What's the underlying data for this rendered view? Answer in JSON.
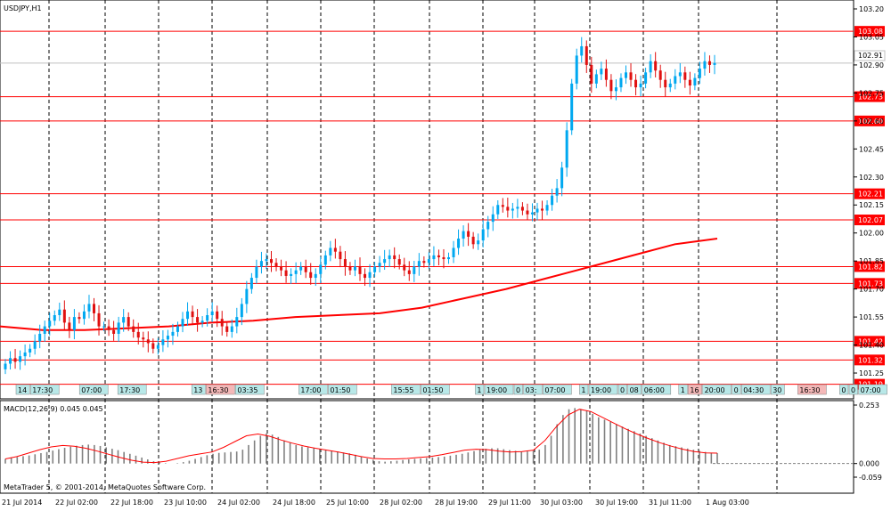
{
  "chart_data": {
    "type": "candlestick",
    "title": "USDJPY,H1",
    "copyright": "MetaTrader 5, © 2001-2014, MetaQuotes Software Corp.",
    "x_tick_labels": [
      "21 Jul 2014",
      "22 Jul 02:00",
      "22 Jul 18:00",
      "23 Jul 10:00",
      "24 Jul 02:00",
      "24 Jul 18:00",
      "25 Jul 10:00",
      "28 Jul 02:00",
      "28 Jul 19:00",
      "29 Jul 11:00",
      "30 Jul 03:00",
      "30 Jul 19:00",
      "31 Jul 11:00",
      "1 Aug 03:00"
    ],
    "price_axis": {
      "ylim": [
        101.15,
        103.2
      ],
      "ticks": [
        "103.20",
        "103.05",
        "102.90",
        "102.75",
        "102.60",
        "102.45",
        "102.30",
        "102.15",
        "102.00",
        "101.85",
        "101.70",
        "101.55",
        "101.40",
        "101.25"
      ]
    },
    "current_price": "102.91",
    "levels": [
      "103.08",
      "102.73",
      "102.60",
      "102.21",
      "102.07",
      "101.82",
      "101.73",
      "101.42",
      "101.32",
      "101.19"
    ],
    "close": [
      101.3,
      101.33,
      101.31,
      101.34,
      101.36,
      101.38,
      101.42,
      101.46,
      101.5,
      101.53,
      101.56,
      101.59,
      101.52,
      101.48,
      101.55,
      101.54,
      101.58,
      101.62,
      101.57,
      101.5,
      101.5,
      101.48,
      101.46,
      101.52,
      101.55,
      101.5,
      101.47,
      101.44,
      101.43,
      101.41,
      101.38,
      101.4,
      101.43,
      101.45,
      101.47,
      101.5,
      101.54,
      101.58,
      101.55,
      101.52,
      101.53,
      101.56,
      101.58,
      101.54,
      101.5,
      101.47,
      101.5,
      101.55,
      101.62,
      101.7,
      101.76,
      101.82,
      101.85,
      101.86,
      101.84,
      101.82,
      101.8,
      101.77,
      101.78,
      101.8,
      101.82,
      101.79,
      101.76,
      101.78,
      101.83,
      101.88,
      101.92,
      101.9,
      101.86,
      101.82,
      101.8,
      101.82,
      101.78,
      101.76,
      101.79,
      101.82,
      101.84,
      101.86,
      101.88,
      101.86,
      101.83,
      101.8,
      101.78,
      101.82,
      101.85,
      101.84,
      101.86,
      101.88,
      101.87,
      101.86,
      101.87,
      101.92,
      101.97,
      102.01,
      101.98,
      101.94,
      101.96,
      102.02,
      102.06,
      102.1,
      102.15,
      102.14,
      102.12,
      102.13,
      102.14,
      102.12,
      102.1,
      102.11,
      102.13,
      102.12,
      102.15,
      102.2,
      102.24,
      102.35,
      102.55,
      102.8,
      102.95,
      103.0,
      102.9,
      102.8,
      102.85,
      102.88,
      102.82,
      102.76,
      102.78,
      102.83,
      102.86,
      102.82,
      102.78,
      102.8,
      102.86,
      102.92,
      102.87,
      102.82,
      102.78,
      102.8,
      102.84,
      102.86,
      102.82,
      102.79,
      102.83,
      102.88,
      102.92,
      102.9,
      102.91
    ],
    "moving_average": {
      "x_start_index": 0,
      "values": [
        101.5,
        101.48,
        101.48,
        101.49,
        101.5,
        101.52,
        101.53,
        101.55,
        101.56,
        101.57,
        101.6,
        101.65,
        101.7,
        101.76,
        101.82,
        101.88,
        101.94,
        101.97
      ]
    },
    "macd": {
      "label": "MACD(12,26,9) 0.045 0.045",
      "ylim": [
        -0.059,
        0.253
      ],
      "ticks": [
        "0.253",
        "0.000",
        "-0.059"
      ],
      "hist": [
        0.02,
        0.025,
        0.028,
        0.032,
        0.035,
        0.04,
        0.045,
        0.05,
        0.056,
        0.062,
        0.068,
        0.073,
        0.077,
        0.08,
        0.082,
        0.08,
        0.076,
        0.07,
        0.064,
        0.058,
        0.05,
        0.042,
        0.034,
        0.026,
        0.018,
        0.01,
        0.004,
        0.002,
        0.0,
        0.002,
        0.006,
        0.012,
        0.02,
        0.028,
        0.036,
        0.042,
        0.046,
        0.048,
        0.05,
        0.052,
        0.06,
        0.08,
        0.1,
        0.12,
        0.13,
        0.125,
        0.115,
        0.1,
        0.09,
        0.08,
        0.074,
        0.07,
        0.066,
        0.062,
        0.058,
        0.055,
        0.052,
        0.048,
        0.044,
        0.038,
        0.03,
        0.022,
        0.016,
        0.01,
        0.008,
        0.01,
        0.012,
        0.015,
        0.018,
        0.02,
        0.022,
        0.024,
        0.026,
        0.028,
        0.03,
        0.034,
        0.038,
        0.042,
        0.048,
        0.054,
        0.06,
        0.064,
        0.066,
        0.066,
        0.062,
        0.058,
        0.055,
        0.052,
        0.052,
        0.055,
        0.06,
        0.08,
        0.12,
        0.17,
        0.21,
        0.235,
        0.24,
        0.236,
        0.228,
        0.215,
        0.2,
        0.19,
        0.18,
        0.17,
        0.16,
        0.15,
        0.14,
        0.13,
        0.12,
        0.11,
        0.1,
        0.09,
        0.08,
        0.075,
        0.07,
        0.065,
        0.06,
        0.055,
        0.05,
        0.046,
        0.045
      ],
      "signal": [
        0.02,
        0.03,
        0.045,
        0.06,
        0.072,
        0.078,
        0.075,
        0.066,
        0.054,
        0.04,
        0.026,
        0.014,
        0.006,
        0.004,
        0.01,
        0.022,
        0.034,
        0.042,
        0.05,
        0.07,
        0.095,
        0.12,
        0.128,
        0.118,
        0.102,
        0.088,
        0.076,
        0.066,
        0.058,
        0.05,
        0.04,
        0.03,
        0.022,
        0.02,
        0.02,
        0.022,
        0.026,
        0.03,
        0.038,
        0.048,
        0.058,
        0.062,
        0.06,
        0.054,
        0.05,
        0.052,
        0.058,
        0.1,
        0.16,
        0.21,
        0.235,
        0.225,
        0.2,
        0.175,
        0.15,
        0.128,
        0.108,
        0.09,
        0.075,
        0.062,
        0.052,
        0.046,
        0.045
      ]
    },
    "event_labels": [
      {
        "text": "14",
        "color": "#b8e8e8"
      },
      {
        "text": "17:30",
        "color": "#b8e8e8"
      },
      {
        "text": "07:00",
        "color": "#b8e8e8"
      },
      {
        "text": "17:30",
        "color": "#b8e8e8"
      },
      {
        "text": "13",
        "color": "#b8e8e8"
      },
      {
        "text": "16:30",
        "color": "#f4b8b8"
      },
      {
        "text": "03:35",
        "color": "#b8e8e8"
      },
      {
        "text": "17:00",
        "color": "#b8e8e8"
      },
      {
        "text": "01:50",
        "color": "#b8e8e8"
      },
      {
        "text": "15:55",
        "color": "#b8e8e8"
      },
      {
        "text": "01:50",
        "color": "#b8e8e8"
      },
      {
        "text": "1",
        "color": "#b8e8e8"
      },
      {
        "text": "19:00",
        "color": "#b8e8e8"
      },
      {
        "text": "0",
        "color": "#b8e8e8"
      },
      {
        "text": "03:",
        "color": "#b8e8e8"
      },
      {
        "text": "07:00",
        "color": "#b8e8e8"
      },
      {
        "text": "1",
        "color": "#b8e8e8"
      },
      {
        "text": "19:00",
        "color": "#b8e8e8"
      },
      {
        "text": "0",
        "color": "#b8e8e8"
      },
      {
        "text": "08",
        "color": "#b8e8e8"
      },
      {
        "text": "06:00",
        "color": "#b8e8e8"
      },
      {
        "text": "1",
        "color": "#b8e8e8"
      },
      {
        "text": "16",
        "color": "#f4b8b8"
      },
      {
        "text": "20:00",
        "color": "#b8e8e8"
      },
      {
        "text": "0",
        "color": "#b8e8e8"
      },
      {
        "text": "04:30",
        "color": "#b8e8e8"
      },
      {
        "text": "30",
        "color": "#b8e8e8"
      },
      {
        "text": "16:30",
        "color": "#f4b8b8"
      },
      {
        "text": "0",
        "color": "#b8e8e8"
      },
      {
        "text": "0",
        "color": "#b8e8e8"
      },
      {
        "text": "07:00",
        "color": "#b8e8e8"
      },
      {
        "text": "16:00",
        "color": "#b8e8e8"
      },
      {
        "text": "22:00",
        "color": "#b8e8e8"
      }
    ],
    "colors": {
      "bull": "#00a8f0",
      "bear": "#e01010",
      "level": "#ff0000",
      "ma": "#ff0000",
      "macd_hist": "#808080",
      "macd_signal": "#ff0000",
      "grid": "#000000"
    }
  }
}
